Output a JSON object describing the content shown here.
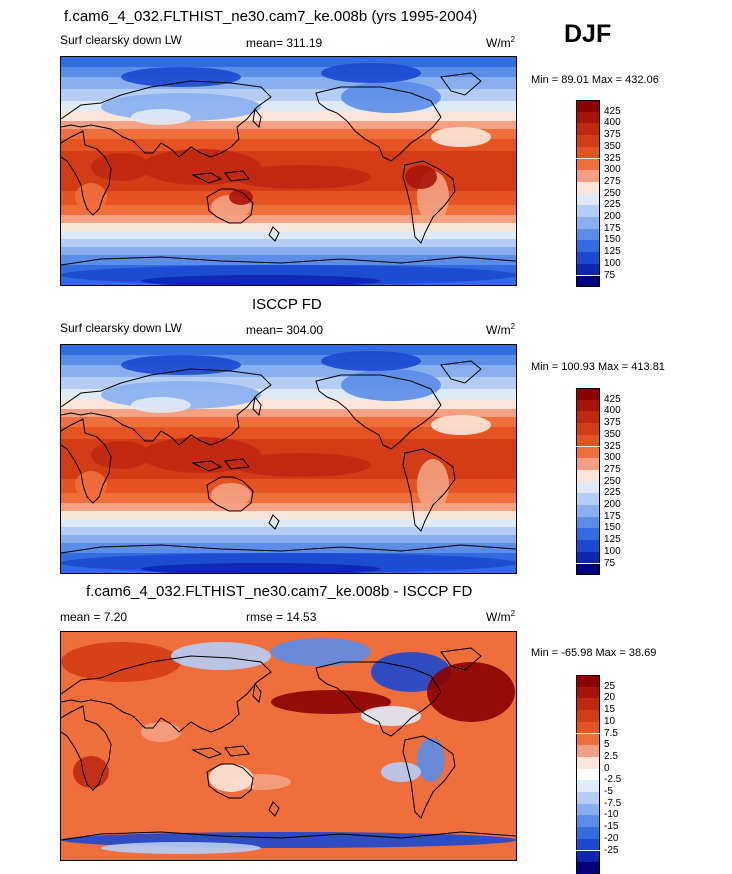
{
  "season": "DJF",
  "panels": [
    {
      "title": "f.cam6_4_032.FLTHIST_ne30.cam7_ke.008b (yrs 1995-2004)",
      "variable": "Surf clearsky down LW",
      "mean": "mean= 311.19",
      "units": "W/m",
      "units_sup": "2",
      "minmax": "Min = 89.01 Max = 432.06",
      "colorbar": {
        "labels": [
          "425",
          "400",
          "375",
          "350",
          "325",
          "300",
          "275",
          "250",
          "225",
          "200",
          "175",
          "150",
          "125",
          "100",
          "75"
        ],
        "colors": [
          "#8b0000",
          "#a8140a",
          "#c0280f",
          "#d43c16",
          "#e55322",
          "#ee6e3c",
          "#f3a183",
          "#fbe5d8",
          "#dfeaf8",
          "#b5cdf4",
          "#88aff0",
          "#5a8de8",
          "#336ce0",
          "#1b48d0",
          "#0d26b0",
          "#03027a"
        ]
      },
      "map_kind": "lw_model"
    },
    {
      "title": "ISCCP FD",
      "variable": "Surf clearsky down LW",
      "mean": "mean= 304.00",
      "units": "W/m",
      "units_sup": "2",
      "minmax": "Min = 100.93 Max = 413.81",
      "colorbar": {
        "labels": [
          "425",
          "400",
          "375",
          "350",
          "325",
          "300",
          "275",
          "250",
          "225",
          "200",
          "175",
          "150",
          "125",
          "100",
          "75"
        ],
        "colors": [
          "#8b0000",
          "#a8140a",
          "#c0280f",
          "#d43c16",
          "#e55322",
          "#ee6e3c",
          "#f3a183",
          "#fbe5d8",
          "#dfeaf8",
          "#b5cdf4",
          "#88aff0",
          "#5a8de8",
          "#336ce0",
          "#1b48d0",
          "#0d26b0",
          "#03027a"
        ]
      },
      "map_kind": "lw_obs"
    },
    {
      "title": "f.cam6_4_032.FLTHIST_ne30.cam7_ke.008b - ISCCP FD",
      "variable": "mean =   7.20",
      "mean": "rmse =  14.53",
      "units": "W/m",
      "units_sup": "2",
      "minmax": "Min = -65.98 Max =  38.69",
      "colorbar": {
        "labels": [
          "25",
          "20",
          "15",
          "10",
          "7.5",
          "5",
          "2.5",
          "0",
          "-2.5",
          "-5",
          "-7.5",
          "-10",
          "-15",
          "-20",
          "-25"
        ],
        "colors": [
          "#8b0000",
          "#a8140a",
          "#c0280f",
          "#d43c16",
          "#e55322",
          "#ee6e3c",
          "#f3a183",
          "#fbe5d8",
          "#ffffff",
          "#dfeaf8",
          "#b5cdf4",
          "#88aff0",
          "#5a8de8",
          "#336ce0",
          "#1b48d0",
          "#0d26b0",
          "#03027a"
        ]
      },
      "map_kind": "diff"
    }
  ]
}
